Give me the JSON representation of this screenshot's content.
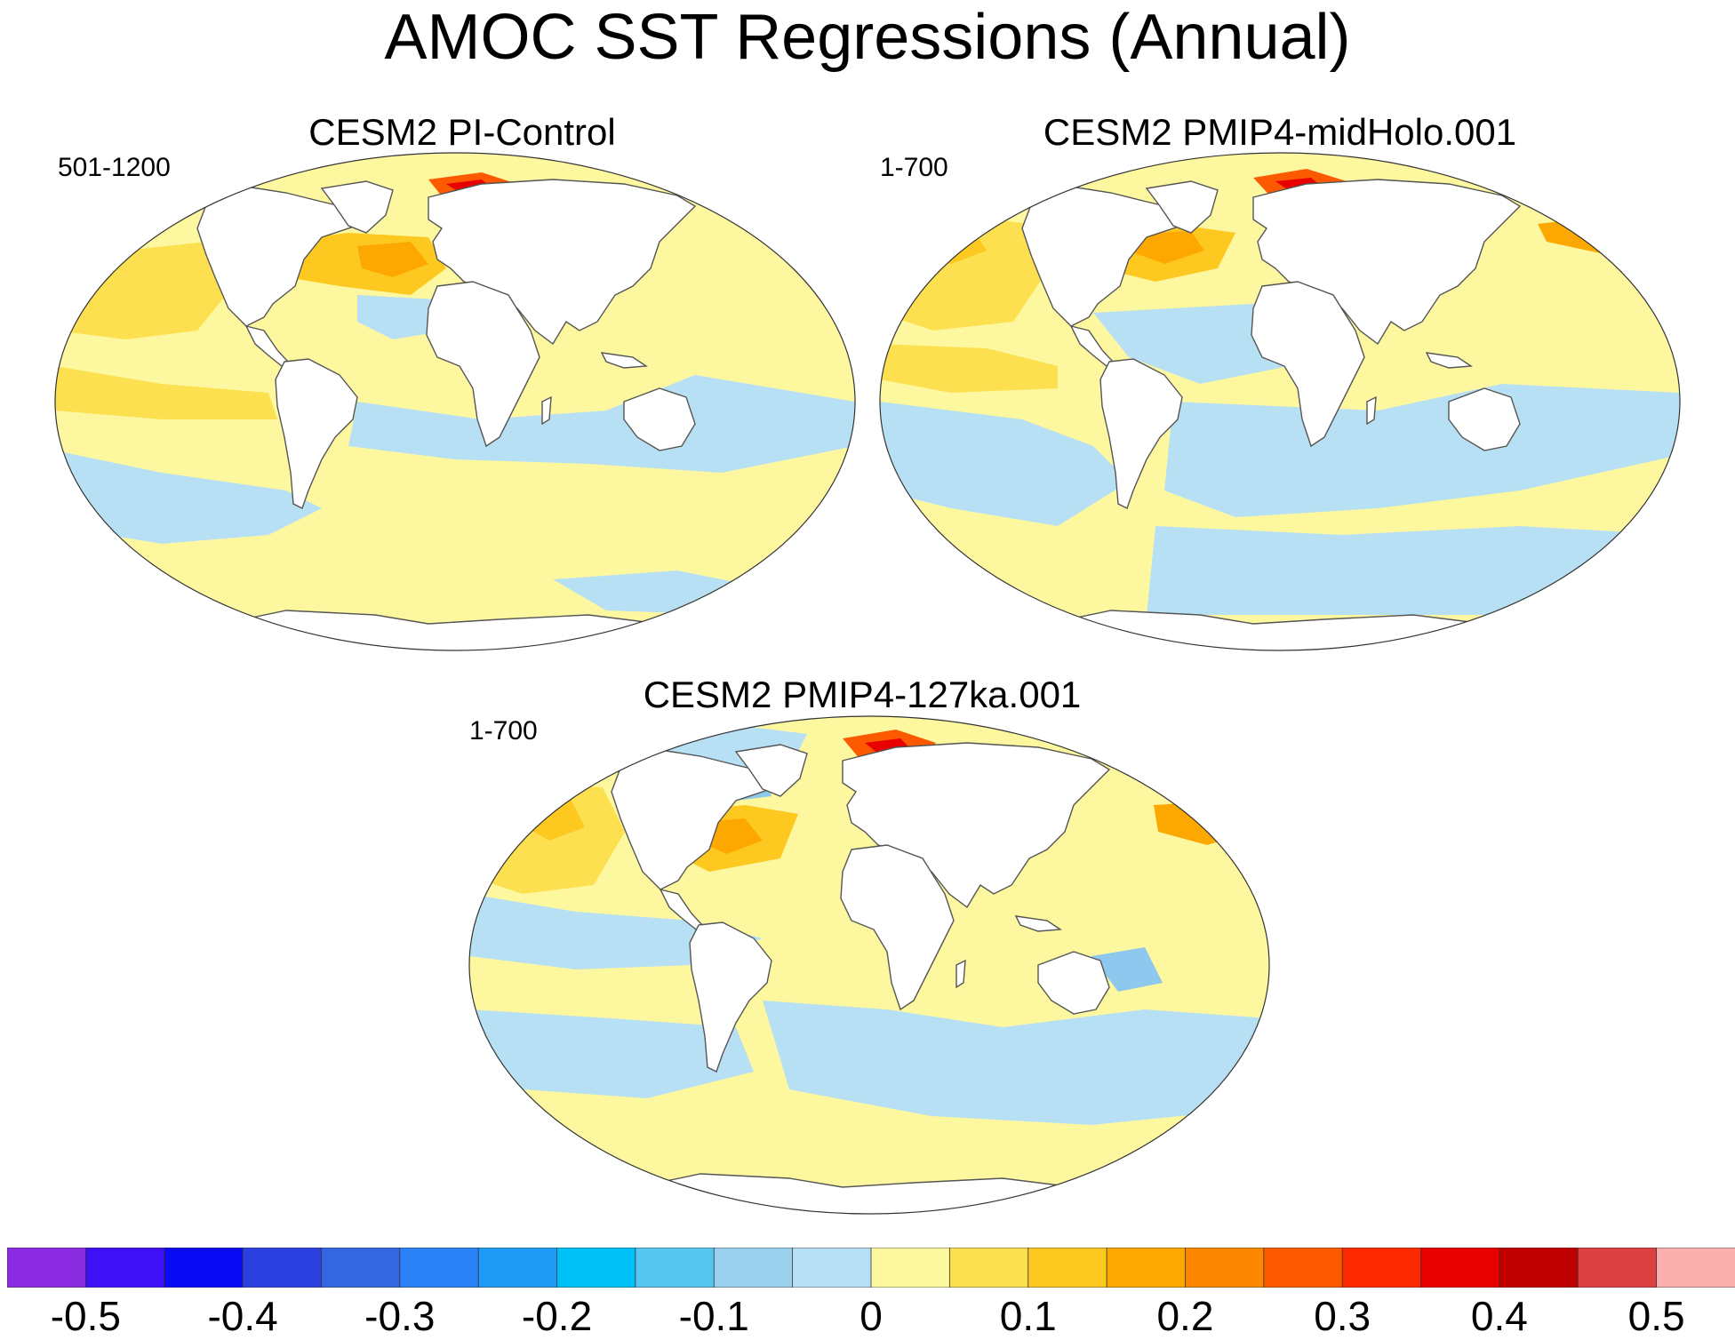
{
  "title": "AMOC SST Regressions (Annual)",
  "panels": [
    {
      "id": "picontrol",
      "title": "CESM2 PI-Control",
      "years": "501-1200"
    },
    {
      "id": "midholo",
      "title": "CESM2 PMIP4-midHolo.001",
      "years": "1-700"
    },
    {
      "id": "127ka",
      "title": "CESM2 PMIP4-127ka.001",
      "years": "1-700"
    }
  ],
  "colorbar": {
    "colors": [
      "#8a2be2",
      "#3d10f5",
      "#0a0af5",
      "#2c40e0",
      "#3366e0",
      "#2a80f5",
      "#1e9cf5",
      "#00c0f8",
      "#55c6f0",
      "#9ad0ec",
      "#b8e0f4",
      "#fdf8a0",
      "#fde050",
      "#fdc820",
      "#fda800",
      "#fd8800",
      "#fd5a00",
      "#fd2a00",
      "#e80000",
      "#c00000",
      "#dc4040",
      "#fbb0b0"
    ],
    "ticks": [
      "-0.5",
      "-0.4",
      "-0.3",
      "-0.2",
      "-0.1",
      "0",
      "0.1",
      "0.2",
      "0.3",
      "0.4",
      "0.5"
    ]
  },
  "colors": {
    "ocean_base": "#fdf8a0",
    "cool": "#b8e0f4",
    "cool_strong": "#8fc8ee",
    "warm1": "#fde050",
    "warm2": "#fdc820",
    "warm3": "#fda800",
    "warm4": "#fd5a00",
    "warm5": "#e80000",
    "land": "#ffffff",
    "coast": "#555555"
  }
}
